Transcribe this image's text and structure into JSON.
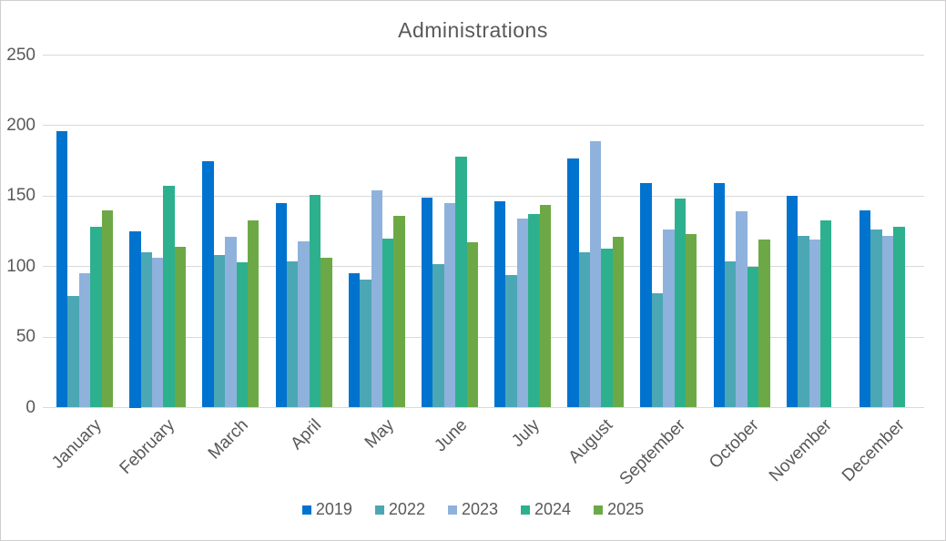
{
  "chart_data": {
    "type": "bar",
    "title": "Administrations",
    "categories": [
      "January",
      "February",
      "March",
      "April",
      "May",
      "June",
      "July",
      "August",
      "September",
      "October",
      "November",
      "December"
    ],
    "series": [
      {
        "name": "2019",
        "color": "#0073cf",
        "values": [
          196,
          125,
          175,
          145,
          95,
          149,
          146,
          177,
          159,
          159,
          150,
          140
        ]
      },
      {
        "name": "2022",
        "color": "#4ba7b4",
        "values": [
          79,
          110,
          108,
          104,
          91,
          102,
          94,
          110,
          81,
          104,
          122,
          126
        ]
      },
      {
        "name": "2023",
        "color": "#8eb2dc",
        "values": [
          95,
          106,
          121,
          118,
          154,
          145,
          134,
          189,
          126,
          139,
          119,
          122
        ]
      },
      {
        "name": "2024",
        "color": "#2db08e",
        "values": [
          128,
          157,
          103,
          151,
          120,
          178,
          137,
          113,
          148,
          100,
          133,
          128
        ]
      },
      {
        "name": "2025",
        "color": "#6ca946",
        "values": [
          140,
          114,
          133,
          106,
          136,
          117,
          144,
          121,
          123,
          119,
          null,
          null
        ]
      }
    ],
    "xlabel": "",
    "ylabel": "",
    "y_axis": {
      "min": 0,
      "max": 250,
      "step": 50,
      "tick_labels": [
        "0",
        "50",
        "100",
        "150",
        "200",
        "250"
      ]
    },
    "grid": "horizontal",
    "legend_position": "bottom",
    "styles": {
      "text_color": "#595959",
      "grid_color": "#d9d9d9",
      "border_color": "#cfcdcd",
      "background": "#ffffff"
    }
  }
}
